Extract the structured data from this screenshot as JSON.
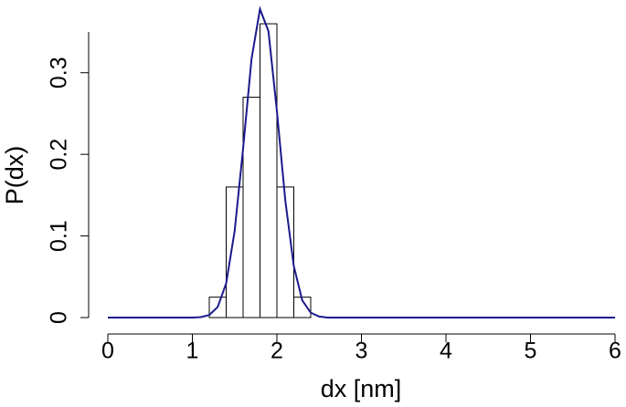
{
  "chart_data": {
    "type": "histogram",
    "xlabel": "dx [nm]",
    "ylabel": "P(dx)",
    "bins": [
      1.2,
      1.4,
      1.6,
      1.8,
      2.0,
      2.2,
      2.4
    ],
    "values": [
      0.025,
      0.16,
      0.27,
      0.36,
      0.16,
      0.025
    ],
    "color": "#000000",
    "xlim": [
      0,
      6
    ],
    "xticks": [
      0,
      1,
      2,
      3,
      4,
      5,
      6
    ],
    "ylim": [
      0,
      0.35
    ],
    "yticks": [
      0,
      0.1,
      0.2,
      0.3
    ],
    "curve": {
      "type": "line",
      "color": "#1a1a8c",
      "x": [
        0,
        0.8,
        1.0,
        1.1,
        1.2,
        1.3,
        1.4,
        1.5,
        1.6,
        1.7,
        1.8,
        1.9,
        2.0,
        2.1,
        2.2,
        2.3,
        2.4,
        2.5,
        2.6,
        2.8,
        6
      ],
      "values": [
        0,
        0,
        0,
        0.0006,
        0.0031,
        0.013,
        0.042,
        0.106,
        0.207,
        0.317,
        0.378,
        0.351,
        0.253,
        0.143,
        0.063,
        0.021,
        0.006,
        0.0012,
        0,
        0,
        0
      ]
    }
  }
}
